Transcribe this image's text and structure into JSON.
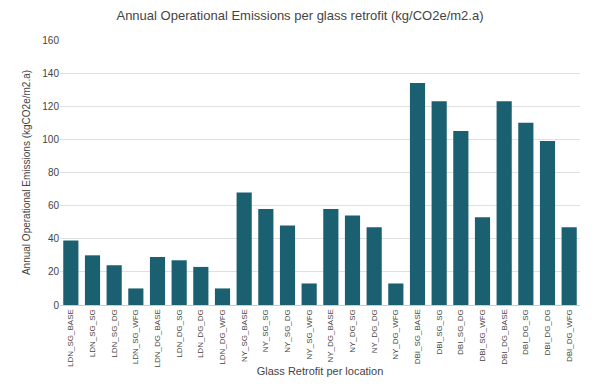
{
  "chart_data": {
    "type": "bar",
    "title": "Annual Operational Emissions per glass retrofit (kg/CO2e/m2.a)",
    "xlabel": "Glass Retrofit per location",
    "ylabel": "Annual Operational Emissions (kgCO2e/m2.a)",
    "categories": [
      "LDN_SG_BASE",
      "LDN_SG_SG",
      "LDN_SG_DG",
      "LDN_SG_WFG",
      "LDN_DG_BASE",
      "LDN_DG_SG",
      "LDN_DG_DG",
      "LDN_DG_WFG",
      "NY_SG_BASE",
      "NY_SG_SG",
      "NY_SG_DG",
      "NY_SG_WFG",
      "NY_DG_BASE",
      "NY_DG_SG",
      "NY_DG_DG",
      "NY_DG_WFG",
      "DBI_SG_BASE",
      "DBI_SG_SG",
      "DBI_SG_DG",
      "DBI_SG_WFG",
      "DBI_DG_BASE",
      "DBI_DG_SG",
      "DBI_DG_DG",
      "DBI_DG_WFG"
    ],
    "values": [
      39,
      30,
      24,
      10,
      29,
      27,
      23,
      10,
      68,
      58,
      48,
      13,
      58,
      54,
      47,
      13,
      134,
      123,
      105,
      53,
      123,
      110,
      99,
      47
    ],
    "color": "#1a6070",
    "ylim": [
      0,
      160
    ],
    "yticks": [
      0,
      20,
      40,
      60,
      80,
      100,
      120,
      140,
      160
    ],
    "grid": true
  }
}
